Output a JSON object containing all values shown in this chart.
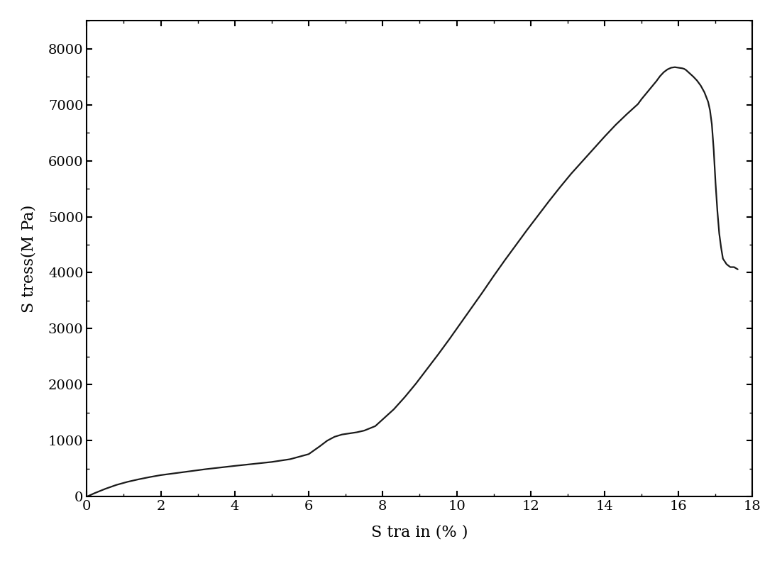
{
  "xlabel": "S tra in (% )",
  "ylabel": "S tress(M Pa)",
  "xlim": [
    0,
    18
  ],
  "ylim": [
    0,
    8500
  ],
  "xticks": [
    0,
    2,
    4,
    6,
    8,
    10,
    12,
    14,
    16,
    18
  ],
  "yticks": [
    0,
    1000,
    2000,
    3000,
    4000,
    5000,
    6000,
    7000,
    8000
  ],
  "line_color": "#1a1a1a",
  "line_width": 1.6,
  "background_color": "#ffffff",
  "x": [
    0.0,
    0.2,
    0.5,
    0.8,
    1.1,
    1.4,
    1.7,
    2.0,
    2.4,
    2.8,
    3.2,
    3.6,
    4.0,
    4.5,
    5.0,
    5.5,
    6.0,
    6.3,
    6.5,
    6.7,
    6.9,
    7.1,
    7.3,
    7.5,
    7.8,
    8.0,
    8.3,
    8.6,
    8.9,
    9.2,
    9.5,
    9.8,
    10.1,
    10.4,
    10.7,
    11.0,
    11.3,
    11.6,
    11.9,
    12.2,
    12.5,
    12.8,
    13.1,
    13.4,
    13.7,
    14.0,
    14.3,
    14.6,
    14.9,
    15.0,
    15.2,
    15.4,
    15.5,
    15.6,
    15.7,
    15.8,
    15.9,
    16.0,
    16.05,
    16.1,
    16.15,
    16.2,
    16.3,
    16.4,
    16.5,
    16.6,
    16.7,
    16.8,
    16.85,
    16.9,
    16.95,
    17.0,
    17.05,
    17.1,
    17.15,
    17.2,
    17.3,
    17.4,
    17.5,
    17.55,
    17.6
  ],
  "y": [
    0,
    60,
    140,
    210,
    265,
    310,
    350,
    385,
    420,
    455,
    490,
    520,
    550,
    585,
    620,
    670,
    760,
    900,
    1000,
    1070,
    1110,
    1130,
    1150,
    1180,
    1260,
    1380,
    1560,
    1780,
    2020,
    2280,
    2540,
    2810,
    3090,
    3370,
    3650,
    3940,
    4220,
    4490,
    4760,
    5020,
    5280,
    5530,
    5770,
    5990,
    6210,
    6430,
    6640,
    6830,
    7010,
    7100,
    7260,
    7420,
    7510,
    7580,
    7630,
    7660,
    7670,
    7660,
    7655,
    7650,
    7640,
    7620,
    7560,
    7500,
    7430,
    7340,
    7220,
    7050,
    6900,
    6650,
    6200,
    5600,
    5100,
    4700,
    4450,
    4250,
    4150,
    4100,
    4100,
    4080,
    4060
  ]
}
